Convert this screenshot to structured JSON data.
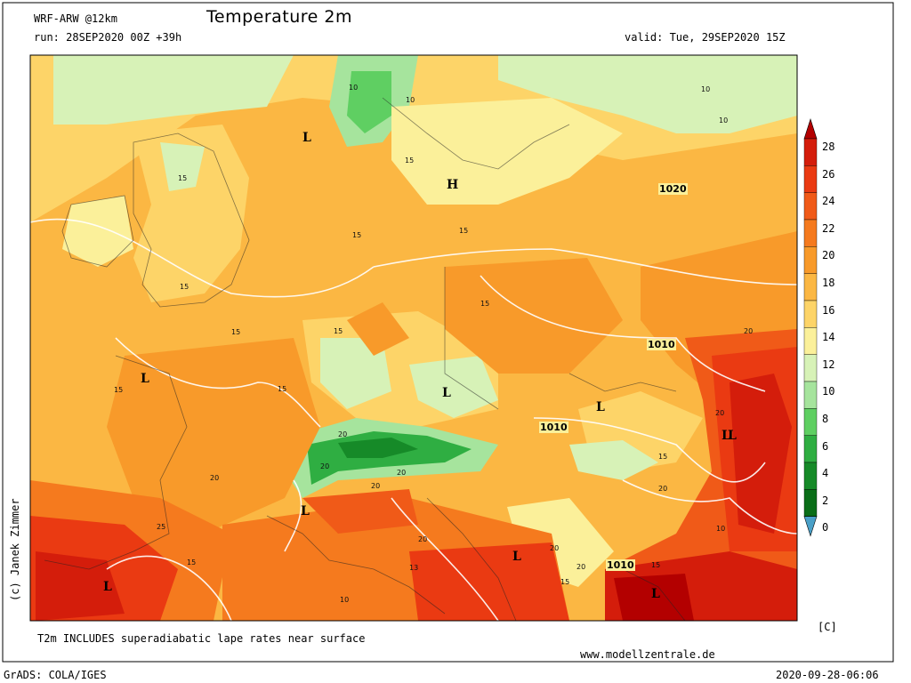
{
  "header": {
    "model": "WRF-ARW @12km",
    "title": "Temperature 2m",
    "run": "run: 28SEP2020 00Z +39h",
    "valid": "valid: Tue, 29SEP2020 15Z"
  },
  "footer": {
    "note": "T2m INCLUDES superadiabatic lape rates near surface",
    "website": "www.modellzentrale.de",
    "grads": "GrADS: COLA/IGES",
    "timestamp": "2020-09-28-06:06",
    "copyright": "(c) Janek Zimmer"
  },
  "colorbar": {
    "unit": "[C]",
    "levels": [
      "28",
      "26",
      "24",
      "22",
      "20",
      "18",
      "16",
      "14",
      "12",
      "10",
      "8",
      "6",
      "4",
      "2",
      "0"
    ],
    "colors": [
      "#b30000",
      "#d41d0b",
      "#ea3a12",
      "#f05a18",
      "#f57a1e",
      "#f89a2a",
      "#fbb743",
      "#fdd468",
      "#fbf09a",
      "#d7f2b7",
      "#a6e49d",
      "#5fcf62",
      "#2fae42",
      "#168a28",
      "#0a6e18",
      "#4aa0c8"
    ]
  },
  "map_labels": {
    "pressure": [
      {
        "text": "L"
      },
      {
        "text": "H"
      },
      {
        "text": "L"
      },
      {
        "text": "L"
      },
      {
        "text": "L"
      },
      {
        "text": "L"
      },
      {
        "text": "L"
      },
      {
        "text": "L"
      },
      {
        "text": "L"
      },
      {
        "text": "L"
      },
      {
        "text": "L"
      }
    ],
    "isobars": [
      "1020",
      "1010",
      "1010",
      "1010"
    ],
    "temps": [
      "10",
      "10",
      "10",
      "10",
      "15",
      "15",
      "15",
      "15",
      "15",
      "15",
      "15",
      "15",
      "15",
      "15",
      "20",
      "20",
      "20",
      "20",
      "20",
      "20",
      "20",
      "20",
      "25",
      "15",
      "10",
      "20",
      "15",
      "13",
      "10",
      "15",
      "20",
      "20",
      "15"
    ]
  }
}
